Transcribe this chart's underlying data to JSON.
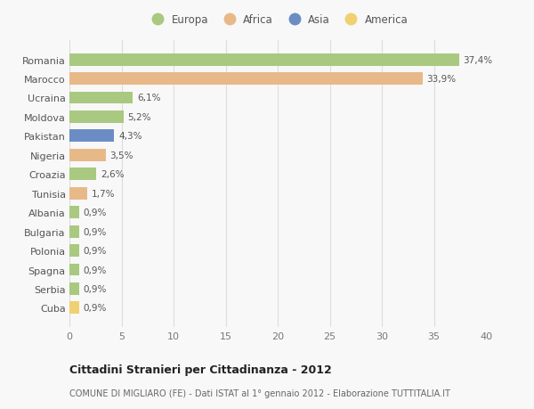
{
  "countries": [
    "Romania",
    "Marocco",
    "Ucraina",
    "Moldova",
    "Pakistan",
    "Nigeria",
    "Croazia",
    "Tunisia",
    "Albania",
    "Bulgaria",
    "Polonia",
    "Spagna",
    "Serbia",
    "Cuba"
  ],
  "values": [
    37.4,
    33.9,
    6.1,
    5.2,
    4.3,
    3.5,
    2.6,
    1.7,
    0.9,
    0.9,
    0.9,
    0.9,
    0.9,
    0.9
  ],
  "labels": [
    "37,4%",
    "33,9%",
    "6,1%",
    "5,2%",
    "4,3%",
    "3,5%",
    "2,6%",
    "1,7%",
    "0,9%",
    "0,9%",
    "0,9%",
    "0,9%",
    "0,9%",
    "0,9%"
  ],
  "continents": [
    "Europa",
    "Africa",
    "Europa",
    "Europa",
    "Asia",
    "Africa",
    "Europa",
    "Africa",
    "Europa",
    "Europa",
    "Europa",
    "Europa",
    "Europa",
    "America"
  ],
  "colors": {
    "Europa": "#a8c97f",
    "Africa": "#e8b988",
    "Asia": "#6b8dc4",
    "America": "#f0d070"
  },
  "legend_order": [
    "Europa",
    "Africa",
    "Asia",
    "America"
  ],
  "title": "Cittadini Stranieri per Cittadinanza - 2012",
  "subtitle": "COMUNE DI MIGLIARO (FE) - Dati ISTAT al 1° gennaio 2012 - Elaborazione TUTTITALIA.IT",
  "xlim": [
    0,
    40
  ],
  "xticks": [
    0,
    5,
    10,
    15,
    20,
    25,
    30,
    35,
    40
  ],
  "background_color": "#f8f8f8",
  "grid_color": "#dddddd",
  "bar_height": 0.65
}
